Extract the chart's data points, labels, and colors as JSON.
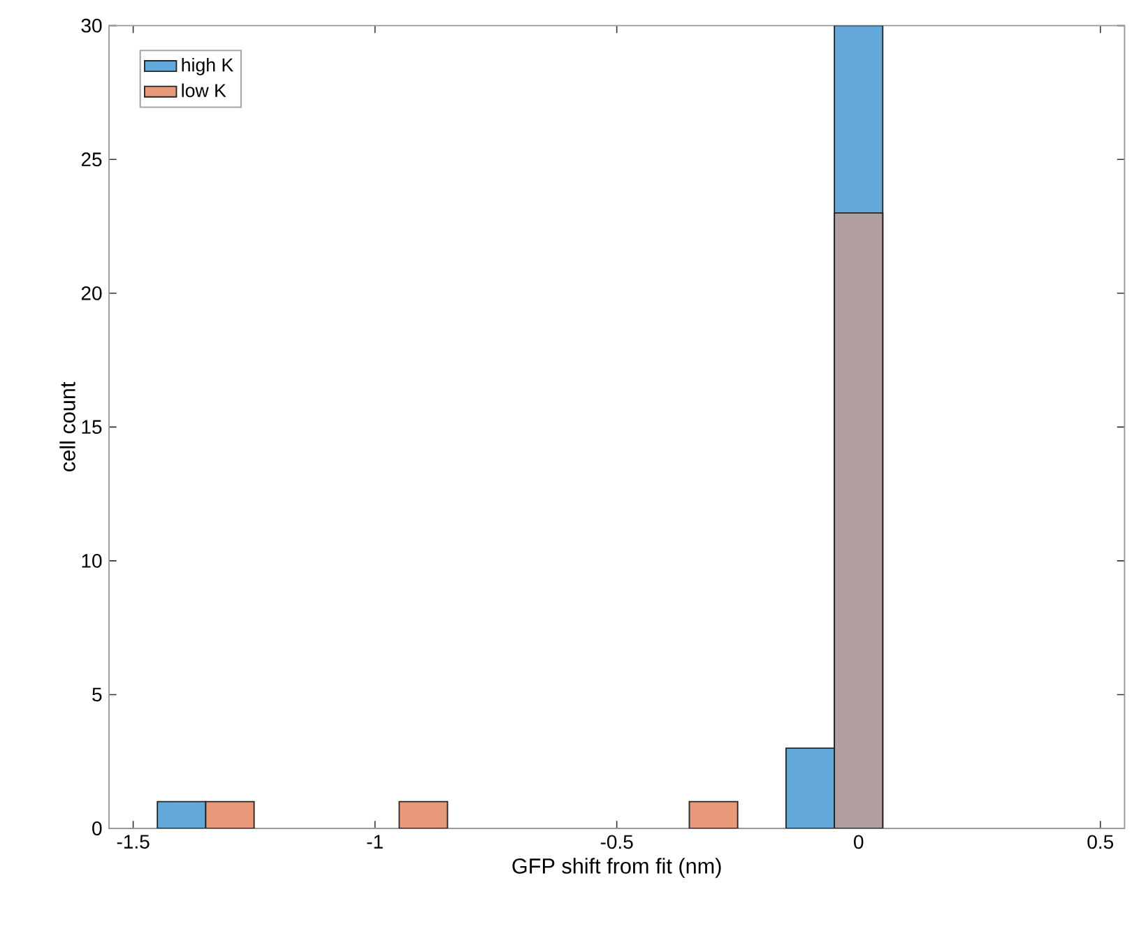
{
  "chart_data": {
    "type": "histogram",
    "xlabel": "GFP shift from fit (nm)",
    "ylabel": "cell count",
    "bins": [
      -1.45,
      -1.35,
      -1.25,
      -1.15,
      -1.05,
      -0.95,
      -0.85,
      -0.75,
      -0.65,
      -0.55,
      -0.45,
      -0.35,
      -0.25,
      -0.15,
      -0.05,
      0.05
    ],
    "series": [
      {
        "name": "high K",
        "color": "#62a8d8",
        "values": [
          1,
          0,
          0,
          0,
          0,
          0,
          0,
          0,
          0,
          0,
          0,
          0,
          0,
          3,
          30
        ]
      },
      {
        "name": "low K",
        "color": "#e8997a",
        "values": [
          0,
          1,
          0,
          0,
          0,
          1,
          0,
          0,
          0,
          0,
          0,
          1,
          0,
          0,
          23
        ]
      }
    ],
    "xlim": [
      -1.55,
      0.55
    ],
    "ylim": [
      0,
      30
    ],
    "xticks": [
      -1.5,
      -1,
      -0.5,
      0,
      0.5
    ],
    "yticks": [
      0,
      5,
      10,
      15,
      20,
      25,
      30
    ],
    "legend": "top left"
  }
}
